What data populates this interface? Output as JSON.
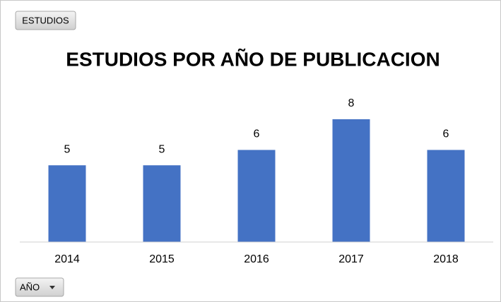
{
  "chart_data": {
    "type": "bar",
    "title": "ESTUDIOS POR AÑO DE PUBLICACION",
    "categories": [
      "2014",
      "2015",
      "2016",
      "2017",
      "2018"
    ],
    "values": [
      5,
      5,
      6,
      8,
      6
    ],
    "color": "#4472c4",
    "ylim": [
      0,
      8
    ],
    "grid": false,
    "value_field_button": "ESTUDIOS",
    "axis_field_button": "AÑO"
  }
}
